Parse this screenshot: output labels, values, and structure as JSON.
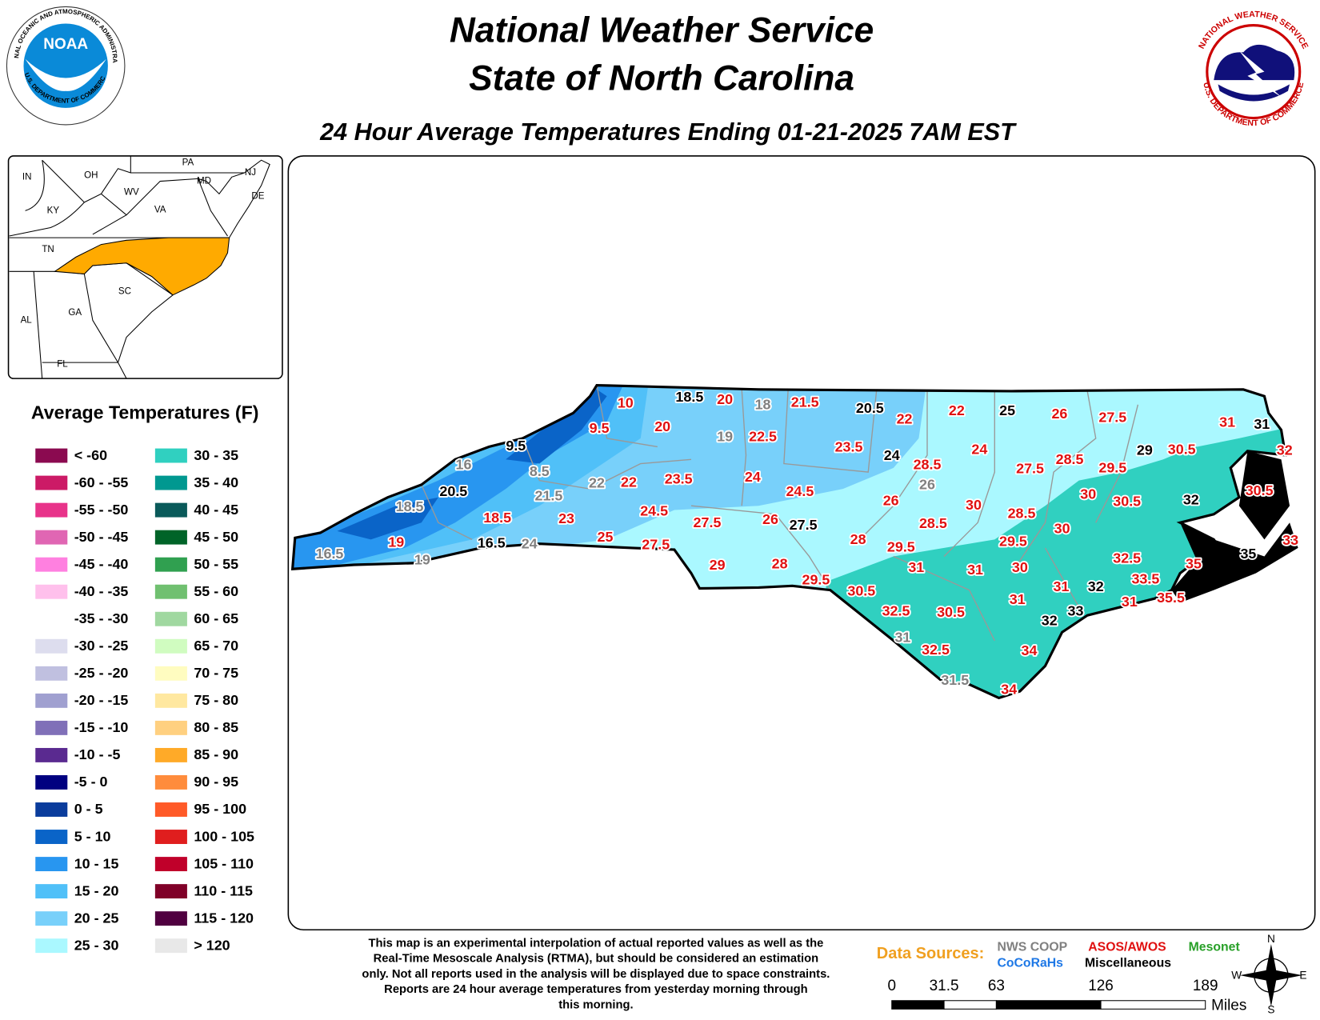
{
  "header": {
    "title_lines": [
      "National Weather Service",
      "State of North Carolina"
    ],
    "subtitle": "24 Hour Average Temperatures Ending 01-21-2025 7AM EST"
  },
  "logos": {
    "noaa": {
      "name": "NOAA",
      "ring_top": "NATIONAL OCEANIC AND ATMOSPHERIC ADMINISTRATION",
      "ring_bottom": "U.S. DEPARTMENT OF COMMERCE"
    },
    "nws": {
      "ring_top": "NATIONAL WEATHER SERVICE",
      "ring_bottom": "U.S. DEPARTMENT OF COMMERCE"
    }
  },
  "inset_labels": [
    "IN",
    "OH",
    "PA",
    "NJ",
    "MD",
    "DE",
    "WV",
    "KY",
    "VA",
    "TN",
    "SC",
    "GA",
    "AL",
    "FL"
  ],
  "legend": {
    "title": "Average Temperatures (F)",
    "items": [
      {
        "label": "< -60",
        "color": "#8b0a50"
      },
      {
        "label": "-60 - -55",
        "color": "#cc1a66"
      },
      {
        "label": "-55 - -50",
        "color": "#e8338a"
      },
      {
        "label": "-50 - -45",
        "color": "#e066b3"
      },
      {
        "label": "-45 - -40",
        "color": "#ff80e0"
      },
      {
        "label": "-40 - -35",
        "color": "#ffc0ec"
      },
      {
        "label": "-35 - -30",
        "color": "#ffffff"
      },
      {
        "label": "-30 - -25",
        "color": "#ddddee"
      },
      {
        "label": "-25 - -20",
        "color": "#c0c0e0"
      },
      {
        "label": "-20 - -15",
        "color": "#a0a0d0"
      },
      {
        "label": "-15 - -10",
        "color": "#8070b8"
      },
      {
        "label": "-10 - -5",
        "color": "#5a2a90"
      },
      {
        "label": "-5 - 0",
        "color": "#000080"
      },
      {
        "label": "0 - 5",
        "color": "#0a3c9c"
      },
      {
        "label": "5 - 10",
        "color": "#0a64c8"
      },
      {
        "label": "10 - 15",
        "color": "#2896f0"
      },
      {
        "label": "15 - 20",
        "color": "#50c0f8"
      },
      {
        "label": "20 - 25",
        "color": "#78d0fa"
      },
      {
        "label": "25 - 30",
        "color": "#aaf8ff"
      },
      {
        "label": "30 - 35",
        "color": "#30d0c0"
      },
      {
        "label": "35 - 40",
        "color": "#009890"
      },
      {
        "label": "40 - 45",
        "color": "#0a5a5a"
      },
      {
        "label": "45 - 50",
        "color": "#006428"
      },
      {
        "label": "50 - 55",
        "color": "#30a050"
      },
      {
        "label": "55 - 60",
        "color": "#70c070"
      },
      {
        "label": "60 - 65",
        "color": "#a0d8a0"
      },
      {
        "label": "65 - 70",
        "color": "#d0fcc0"
      },
      {
        "label": "70 - 75",
        "color": "#fffcc0"
      },
      {
        "label": "75 - 80",
        "color": "#ffe8a0"
      },
      {
        "label": "80 - 85",
        "color": "#ffd080"
      },
      {
        "label": "85 - 90",
        "color": "#ffaa28"
      },
      {
        "label": "90 - 95",
        "color": "#ff8c3c"
      },
      {
        "label": "95 - 100",
        "color": "#ff5a28"
      },
      {
        "label": "100 - 105",
        "color": "#e01e1e"
      },
      {
        "label": "105 - 110",
        "color": "#c0002a"
      },
      {
        "label": "110 - 115",
        "color": "#800028"
      },
      {
        "label": "115 - 120",
        "color": "#500040"
      },
      {
        "label": "> 120",
        "color": "#e8e8e8"
      }
    ]
  },
  "data_sources": {
    "title": "Data Sources:",
    "items": [
      {
        "name": "NWS COOP",
        "color": "#808080"
      },
      {
        "name": "CoCoRaHs",
        "color": "#1e78e6"
      },
      {
        "name": "ASOS/AWOS",
        "color": "#e01010"
      },
      {
        "name": "Miscellaneous",
        "color": "#000000"
      },
      {
        "name": "Mesonet",
        "color": "#28a028"
      }
    ]
  },
  "stations": [
    {
      "value": 10,
      "source": "ASOS/AWOS"
    },
    {
      "value": 18.5,
      "source": "Miscellaneous"
    },
    {
      "value": 20,
      "source": "ASOS/AWOS"
    },
    {
      "value": 18,
      "source": "NWS COOP"
    },
    {
      "value": 21.5,
      "source": "ASOS/AWOS"
    },
    {
      "value": 20.5,
      "source": "Miscellaneous"
    },
    {
      "value": 22,
      "source": "ASOS/AWOS"
    },
    {
      "value": 22,
      "source": "ASOS/AWOS"
    },
    {
      "value": 25,
      "source": "Miscellaneous"
    },
    {
      "value": 26,
      "source": "ASOS/AWOS"
    },
    {
      "value": 27.5,
      "source": "ASOS/AWOS"
    },
    {
      "value": 31,
      "source": "ASOS/AWOS"
    },
    {
      "value": 31,
      "source": "Miscellaneous"
    },
    {
      "value": 32,
      "source": "ASOS/AWOS"
    },
    {
      "value": 9.5,
      "source": "ASOS/AWOS"
    },
    {
      "value": 20,
      "source": "ASOS/AWOS"
    },
    {
      "value": 19,
      "source": "NWS COOP"
    },
    {
      "value": 22.5,
      "source": "ASOS/AWOS"
    },
    {
      "value": 23.5,
      "source": "ASOS/AWOS"
    },
    {
      "value": 24,
      "source": "Miscellaneous"
    },
    {
      "value": 28.5,
      "source": "ASOS/AWOS"
    },
    {
      "value": 24,
      "source": "ASOS/AWOS"
    },
    {
      "value": 27.5,
      "source": "ASOS/AWOS"
    },
    {
      "value": 28.5,
      "source": "ASOS/AWOS"
    },
    {
      "value": 29.5,
      "source": "ASOS/AWOS"
    },
    {
      "value": 29,
      "source": "Miscellaneous"
    },
    {
      "value": 30.5,
      "source": "ASOS/AWOS"
    },
    {
      "value": 30.5,
      "source": "ASOS/AWOS"
    },
    {
      "value": 9.5,
      "source": "Miscellaneous"
    },
    {
      "value": 16,
      "source": "NWS COOP"
    },
    {
      "value": 8.5,
      "source": "NWS COOP"
    },
    {
      "value": 20.5,
      "source": "Miscellaneous"
    },
    {
      "value": 21.5,
      "source": "NWS COOP"
    },
    {
      "value": 22,
      "source": "NWS COOP"
    },
    {
      "value": 22,
      "source": "ASOS/AWOS"
    },
    {
      "value": 23.5,
      "source": "ASOS/AWOS"
    },
    {
      "value": 24,
      "source": "ASOS/AWOS"
    },
    {
      "value": 24.5,
      "source": "ASOS/AWOS"
    },
    {
      "value": 26,
      "source": "NWS COOP"
    },
    {
      "value": 26,
      "source": "ASOS/AWOS"
    },
    {
      "value": 30,
      "source": "ASOS/AWOS"
    },
    {
      "value": 28.5,
      "source": "ASOS/AWOS"
    },
    {
      "value": 30,
      "source": "ASOS/AWOS"
    },
    {
      "value": 30.5,
      "source": "ASOS/AWOS"
    },
    {
      "value": 32,
      "source": "Miscellaneous"
    },
    {
      "value": 18.5,
      "source": "NWS COOP"
    },
    {
      "value": 18.5,
      "source": "ASOS/AWOS"
    },
    {
      "value": 23,
      "source": "ASOS/AWOS"
    },
    {
      "value": 24.5,
      "source": "ASOS/AWOS"
    },
    {
      "value": 27.5,
      "source": "ASOS/AWOS"
    },
    {
      "value": 26,
      "source": "ASOS/AWOS"
    },
    {
      "value": 27.5,
      "source": "Miscellaneous"
    },
    {
      "value": 28,
      "source": "ASOS/AWOS"
    },
    {
      "value": 28.5,
      "source": "ASOS/AWOS"
    },
    {
      "value": 29.5,
      "source": "ASOS/AWOS"
    },
    {
      "value": 29.5,
      "source": "ASOS/AWOS"
    },
    {
      "value": 30,
      "source": "ASOS/AWOS"
    },
    {
      "value": 32.5,
      "source": "ASOS/AWOS"
    },
    {
      "value": 35,
      "source": "ASOS/AWOS"
    },
    {
      "value": 35,
      "source": "Miscellaneous"
    },
    {
      "value": 33,
      "source": "ASOS/AWOS"
    },
    {
      "value": 33.5,
      "source": "ASOS/AWOS"
    },
    {
      "value": 16.5,
      "source": "NWS COOP"
    },
    {
      "value": 19,
      "source": "ASOS/AWOS"
    },
    {
      "value": 19,
      "source": "NWS COOP"
    },
    {
      "value": 16.5,
      "source": "Miscellaneous"
    },
    {
      "value": 24,
      "source": "NWS COOP"
    },
    {
      "value": 25,
      "source": "ASOS/AWOS"
    },
    {
      "value": 27.5,
      "source": "ASOS/AWOS"
    },
    {
      "value": 29,
      "source": "ASOS/AWOS"
    },
    {
      "value": 28,
      "source": "ASOS/AWOS"
    },
    {
      "value": 29.5,
      "source": "ASOS/AWOS"
    },
    {
      "value": 31,
      "source": "ASOS/AWOS"
    },
    {
      "value": 31,
      "source": "ASOS/AWOS"
    },
    {
      "value": 30,
      "source": "ASOS/AWOS"
    },
    {
      "value": 31,
      "source": "ASOS/AWOS"
    },
    {
      "value": 32,
      "source": "Miscellaneous"
    },
    {
      "value": 31,
      "source": "ASOS/AWOS"
    },
    {
      "value": 35.5,
      "source": "ASOS/AWOS"
    },
    {
      "value": 30.5,
      "source": "ASOS/AWOS"
    },
    {
      "value": 32.5,
      "source": "ASOS/AWOS"
    },
    {
      "value": 30.5,
      "source": "ASOS/AWOS"
    },
    {
      "value": 31,
      "source": "ASOS/AWOS"
    },
    {
      "value": 33,
      "source": "Miscellaneous"
    },
    {
      "value": 32,
      "source": "Miscellaneous"
    },
    {
      "value": 31,
      "source": "NWS COOP"
    },
    {
      "value": 32.5,
      "source": "ASOS/AWOS"
    },
    {
      "value": 34,
      "source": "ASOS/AWOS"
    },
    {
      "value": 31.5,
      "source": "NWS COOP"
    },
    {
      "value": 34,
      "source": "ASOS/AWOS"
    }
  ],
  "note": {
    "lines": [
      "This map is an experimental interpolation of actual reported values as well as the",
      "Real-Time Mesoscale Analysis (RTMA), but should be considered an estimation",
      "only. Not all reports used in the analysis will be displayed due to space constraints.",
      "Reports are 24 hour average temperatures from yesterday morning through",
      "this morning."
    ]
  },
  "scale": {
    "ticks": [
      0,
      31.5,
      63,
      126,
      189
    ],
    "unit": "Miles"
  },
  "compass": {
    "north": "N",
    "east": "E",
    "south": "S",
    "west": "W"
  }
}
